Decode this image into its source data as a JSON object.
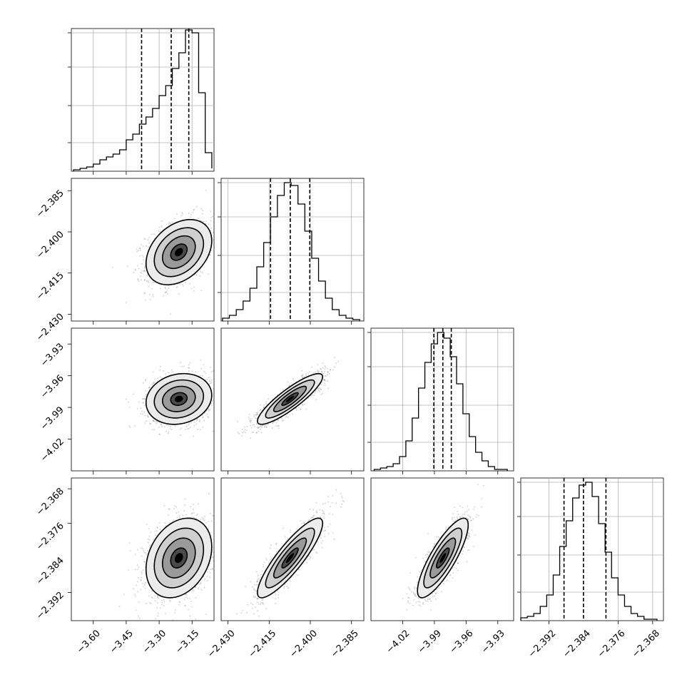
{
  "chart_data": {
    "type": "corner",
    "parameters": [
      {
        "range": [
          -3.7,
          -3.05
        ],
        "ticks": [
          -3.6,
          -3.45,
          -3.3,
          -3.15
        ],
        "tick_labels": [
          "−3.60",
          "−3.45",
          "−3.30",
          "−3.15"
        ],
        "quantiles": [
          -3.38,
          -3.245,
          -3.165
        ]
      },
      {
        "range": [
          -2.4325,
          -2.3805
        ],
        "ticks": [
          -2.43,
          -2.415,
          -2.4,
          -2.385
        ],
        "tick_labels": [
          "−2.430",
          "−2.415",
          "−2.400",
          "−2.385"
        ],
        "quantiles": [
          -2.4145,
          -2.4073,
          -2.4002
        ]
      },
      {
        "range": [
          -4.05,
          -3.915
        ],
        "ticks": [
          -4.02,
          -3.99,
          -3.96,
          -3.93
        ],
        "tick_labels": [
          "−4.02",
          "−3.99",
          "−3.96",
          "−3.93"
        ],
        "quantiles": [
          -3.9905,
          -3.982,
          -3.974
        ]
      },
      {
        "range": [
          -2.3985,
          -2.3655
        ],
        "ticks": [
          -2.392,
          -2.376,
          -2.368
        ],
        "tick_labels": [
          "−2.392",
          "−2.384",
          "−2.376",
          "−2.368"
        ],
        "label_ticks": [
          -2.392,
          -2.384,
          -2.376,
          -2.368
        ],
        "quantiles": [
          -2.3885,
          -2.384,
          -2.3788
        ]
      }
    ],
    "histograms": [
      {
        "bins": [
          -3.69,
          -3.66,
          -3.63,
          -3.6,
          -3.57,
          -3.54,
          -3.51,
          -3.48,
          -3.45,
          -3.42,
          -3.39,
          -3.36,
          -3.33,
          -3.3,
          -3.27,
          -3.24,
          -3.21,
          -3.18,
          -3.15,
          -3.12,
          -3.09,
          -3.06
        ],
        "counts": [
          0.01,
          0.02,
          0.03,
          0.05,
          0.08,
          0.1,
          0.12,
          0.15,
          0.22,
          0.26,
          0.33,
          0.38,
          0.44,
          0.53,
          0.6,
          0.72,
          0.83,
          0.99,
          0.97,
          0.55,
          0.13,
          0.02
        ]
      },
      {
        "bins": [
          -2.432,
          -2.4295,
          -2.427,
          -2.4245,
          -2.422,
          -2.4195,
          -2.417,
          -2.4145,
          -2.412,
          -2.4095,
          -2.407,
          -2.4045,
          -2.402,
          -2.3995,
          -2.397,
          -2.3945,
          -2.392,
          -2.3895,
          -2.387,
          -2.3845,
          -2.382
        ],
        "counts": [
          0.02,
          0.04,
          0.08,
          0.14,
          0.23,
          0.38,
          0.55,
          0.73,
          0.88,
          0.97,
          0.95,
          0.82,
          0.63,
          0.44,
          0.28,
          0.16,
          0.08,
          0.04,
          0.02,
          0.01
        ]
      },
      {
        "bins": [
          -4.047,
          -4.041,
          -4.035,
          -4.029,
          -4.023,
          -4.017,
          -4.011,
          -4.005,
          -3.999,
          -3.993,
          -3.987,
          -3.981,
          -3.975,
          -3.969,
          -3.963,
          -3.957,
          -3.951,
          -3.945,
          -3.939,
          -3.933,
          -3.927,
          -3.921
        ],
        "counts": [
          0.01,
          0.02,
          0.03,
          0.05,
          0.1,
          0.21,
          0.37,
          0.58,
          0.76,
          0.89,
          0.97,
          0.93,
          0.8,
          0.61,
          0.4,
          0.24,
          0.13,
          0.07,
          0.03,
          0.01,
          0.01
        ]
      },
      {
        "bins": [
          -2.3985,
          -2.397,
          -2.3955,
          -2.394,
          -2.3925,
          -2.391,
          -2.3895,
          -2.388,
          -2.3865,
          -2.385,
          -2.3835,
          -2.382,
          -2.3805,
          -2.379,
          -2.3775,
          -2.376,
          -2.3745,
          -2.373,
          -2.3715,
          -2.37,
          -2.3685,
          -2.367
        ],
        "counts": [
          0.02,
          0.03,
          0.05,
          0.1,
          0.18,
          0.32,
          0.52,
          0.7,
          0.86,
          0.95,
          0.97,
          0.87,
          0.68,
          0.48,
          0.3,
          0.18,
          0.1,
          0.05,
          0.03,
          0.01,
          0.01
        ]
      }
    ],
    "pairs": [
      {
        "x": 0,
        "y": 1,
        "mean": [
          -3.21,
          -2.4074
        ],
        "cov": [
          [
            0.0056,
            0.000154
          ],
          [
            0.000154,
            3.53e-05
          ]
        ]
      },
      {
        "x": 0,
        "y": 2,
        "mean": [
          -3.21,
          -3.982
        ],
        "cov": [
          [
            0.0056,
            0.000132
          ],
          [
            0.000132,
            0.000144
          ]
        ]
      },
      {
        "x": 0,
        "y": 3,
        "mean": [
          -3.21,
          -2.384
        ],
        "cov": [
          [
            0.0056,
            9.6e-05
          ],
          [
            9.6e-05,
            2.12e-05
          ]
        ]
      },
      {
        "x": 1,
        "y": 2,
        "mean": [
          -2.4074,
          -3.982
        ],
        "cov": [
          [
            3.53e-05,
            6.24e-05
          ],
          [
            6.24e-05,
            0.000144
          ]
        ]
      },
      {
        "x": 1,
        "y": 3,
        "mean": [
          -2.4074,
          -2.384
        ],
        "cov": [
          [
            3.53e-05,
            2.38e-05
          ],
          [
            2.38e-05,
            2.12e-05
          ]
        ]
      },
      {
        "x": 2,
        "y": 3,
        "mean": [
          -3.982,
          -2.384
        ],
        "cov": [
          [
            0.000144,
            4.56e-05
          ],
          [
            4.56e-05,
            2.12e-05
          ]
        ]
      }
    ],
    "contour_levels_sigma": [
      0.5,
      1.0,
      1.5,
      2.0
    ],
    "grid": true,
    "quantile_line_style": "dashed",
    "scatter_color": "#000000",
    "contour_color": "#000000",
    "histogram_color": "#000000"
  }
}
